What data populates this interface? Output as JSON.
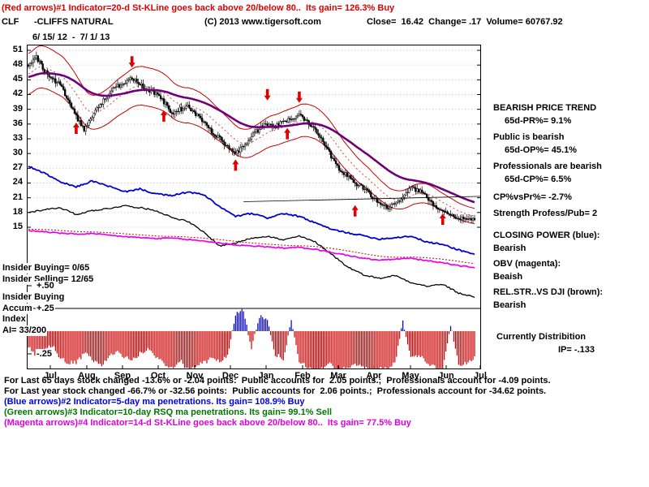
{
  "header": {
    "indicator1_line": "(Red arrows)#1 Indicator=20-d St-KLine goes back above 20/below 80..  Its gain= 126.3% Buy",
    "symbol": "CLF",
    "name": "-CLIFFS NATURAL",
    "copyright": "(C) 2013 www.tigersoft.com",
    "quote": "Close=  16.42  Change= .17  Volume= 60767.92",
    "date_range": "6/ 15/ 12  -  7/ 1/ 13"
  },
  "right_panel": {
    "trend_title": "BEARISH PRICE TREND",
    "pr": "65d-PR%= 9.1%",
    "public_state": "Public is bearish",
    "op": "65d-OP%= 45.1%",
    "professionals_state": "Professionals are bearish",
    "cp": "65d-CP%= 6.5%",
    "cp_vs_pr": "CP%vsPr%= -2.7%",
    "strength": "Strength Profess/Pub= 2",
    "closing_power_label": "CLOSING POWER (blue):",
    "closing_power_state": "Bearish",
    "obv_label": "OBV (magenta):",
    "obv_state": "Beaish",
    "relstr_label": "REL.STR..VS DJI (brown):",
    "relstr_state": "Bearish",
    "distribution_label": "Currently Distribition",
    "ip": "IP= -.133"
  },
  "left_labels": {
    "insider_buying": "Insider Buying= 0/65",
    "insider_selling": "Insider Selling= 12/65",
    "plus50": "+.50",
    "insider_buying2": "Insider Buying",
    "accum": "Accum",
    "plus25": "+.25",
    "index_label": "Index",
    "ai_label": "AI= 33/200",
    "minus25": "-.25"
  },
  "footer": {
    "line1": "For Last 65 days stock changed -13.6% or -2.04 points:  Public accounts for  2.05 points.;  Professionals account for -4.09 points.",
    "line2": "For Last year stock changed -66.7% or -32.56 points:  Public accounts for  2.06 points.;  Professionals account for -34.62 points.",
    "line3": "(Blue arrows)#2 Indicator=5-day ma penetrations. Its gain= 108.9% Buy",
    "line4": "(Green arrows)#3 Indicator=10-day RSQ ma penetrations. Its gain= 99.1% Sell",
    "line5": "(Magenta arrows)#4 Indicator=14-d St-KLine goes back above 20/below 80..  Its gain= 77.5% Buy"
  },
  "colors": {
    "signal_red": "#dd0000",
    "closing_power_blue": "#0000cc",
    "obv_magenta": "#ee00ee",
    "ma_purple": "#70007a",
    "band_red": "#cc0000",
    "ai_negative": "#cc0000",
    "ai_positive": "#0000bb"
  },
  "chart_data": {
    "type": "candlestick",
    "title": "CLF -CLIFFS NATURAL",
    "date_range": "6/15/12 - 7/1/13",
    "last_close": 16.42,
    "change": 0.17,
    "volume": 60767.92,
    "ylim": [
      15,
      51
    ],
    "y_ticks": [
      51,
      48,
      45,
      42,
      39,
      36,
      33,
      30,
      27,
      24,
      21,
      18,
      15
    ],
    "x_labels": [
      "Jul",
      "Aug",
      "Sep",
      "Oct",
      "Nov",
      "Dec",
      "Jan",
      "Feb",
      "Mar",
      "Apr",
      "May",
      "Jun",
      "Jul"
    ],
    "weekly_close": [
      48.0,
      49.5,
      47.0,
      45.0,
      44.0,
      41.0,
      37.5,
      35.0,
      37.5,
      40.0,
      42.0,
      43.5,
      44.5,
      45.5,
      44.0,
      43.0,
      42.0,
      40.5,
      38.0,
      39.0,
      39.5,
      38.0,
      36.5,
      34.5,
      33.0,
      31.5,
      30.0,
      31.5,
      33.5,
      35.0,
      36.0,
      35.5,
      36.5,
      37.0,
      38.0,
      36.5,
      35.0,
      32.5,
      29.5,
      27.0,
      25.5,
      24.0,
      23.0,
      21.5,
      20.0,
      19.0,
      19.5,
      21.5,
      23.0,
      22.5,
      21.0,
      19.5,
      18.5,
      17.5,
      17.0,
      16.8,
      16.4
    ],
    "closing_power": [
      27.4,
      26.0,
      24.2,
      23.2,
      24.4,
      23.4,
      22.2,
      22.8,
      21.8,
      21.4,
      22.2,
      21.6,
      19.2,
      17.2,
      17.8,
      16.9,
      17.8,
      17.2,
      15.9,
      14.6,
      13.9,
      13.3,
      12.6,
      12.9,
      13.2,
      12.0,
      11.5,
      10.4,
      9.5
    ],
    "rel_strength": [
      18.0,
      18.6,
      19.0,
      17.6,
      18.4,
      18.8,
      19.4,
      19.0,
      18.4,
      17.0,
      16.2,
      14.0,
      11.2,
      11.8,
      12.8,
      13.2,
      12.4,
      13.2,
      12.0,
      9.6,
      7.0,
      5.4,
      4.6,
      5.2,
      3.8,
      3.0,
      3.4,
      1.6,
      0.8
    ],
    "obv": [
      14.3,
      14.1,
      13.8,
      13.6,
      13.7,
      13.4,
      13.1,
      12.9,
      12.7,
      12.8,
      12.5,
      12.2,
      11.8,
      11.4,
      11.2,
      11.0,
      10.8,
      10.9,
      10.5,
      9.9,
      9.3,
      8.7,
      8.3,
      8.5,
      8.7,
      8.2,
      7.8,
      7.2,
      6.8
    ],
    "ai_weekly": [
      -0.18,
      -0.28,
      -0.22,
      -0.15,
      -0.3,
      -0.35,
      -0.35,
      -0.25,
      -0.3,
      -0.38,
      -0.3,
      -0.22,
      -0.28,
      -0.32,
      -0.25,
      -0.2,
      -0.28,
      -0.35,
      -0.4,
      -0.32,
      -0.42,
      -0.38,
      -0.35,
      -0.3,
      -0.34,
      -0.26,
      0.18,
      0.24,
      -0.2,
      0.16,
      0.14,
      -0.26,
      -0.3,
      0.1,
      -0.34,
      -0.4,
      -0.44,
      -0.4,
      -0.36,
      -0.44,
      -0.4,
      -0.36,
      -0.4,
      -0.44,
      -0.4,
      -0.42,
      -0.36,
      0.12,
      -0.3,
      -0.25,
      -0.34,
      -0.4,
      -0.44,
      0.08,
      -0.38,
      -0.34,
      -0.3
    ],
    "ai_scale": {
      "plus50": 0.5,
      "plus25": 0.25,
      "minus25": -0.25
    },
    "arrows_up_red": [
      [
        6,
        36.3
      ],
      [
        17,
        38.8
      ],
      [
        26,
        28.8
      ],
      [
        32.5,
        35.2
      ],
      [
        41,
        19.5
      ],
      [
        52,
        17.8
      ]
    ],
    "arrows_down_red": [
      [
        13,
        47.5
      ],
      [
        30,
        40.8
      ],
      [
        34,
        40.3
      ]
    ],
    "trendline": {
      "w1": 27,
      "v1": 20.2,
      "w2": 57,
      "v2": 21.3
    }
  }
}
